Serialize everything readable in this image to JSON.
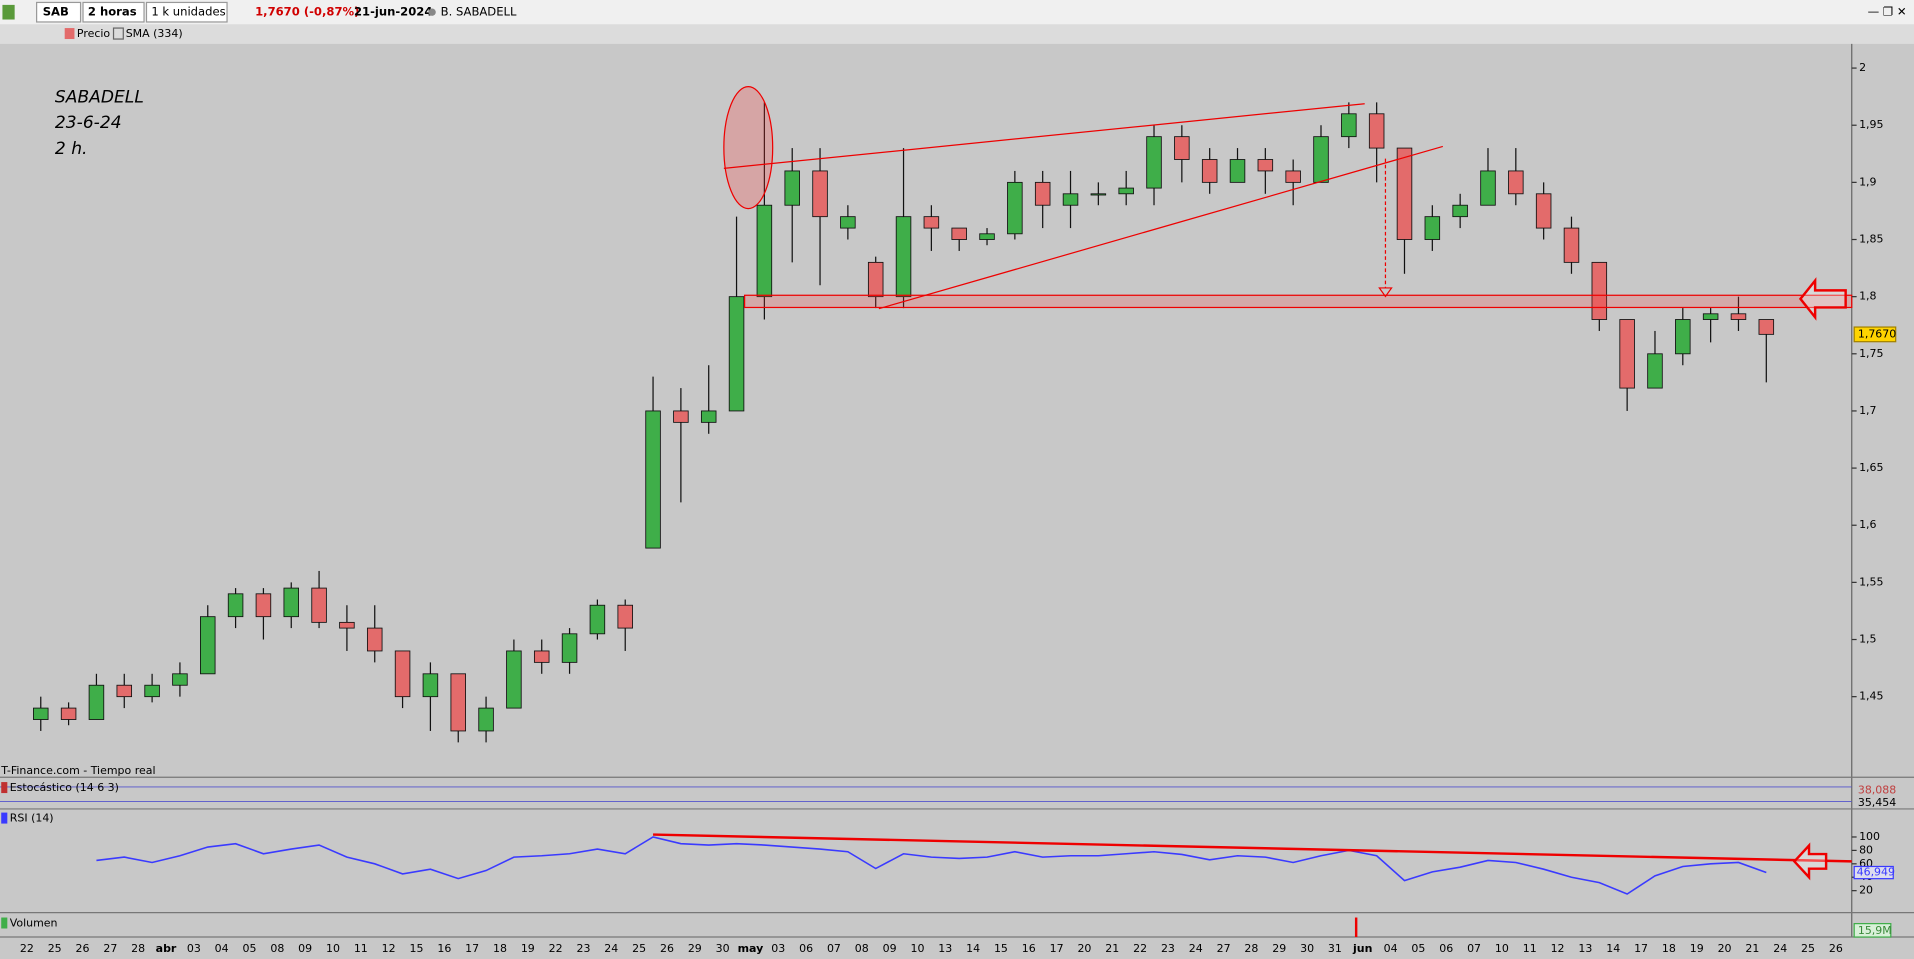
{
  "toolbar": {
    "symbol": "SAB",
    "interval": "2 horas",
    "units": "1 k unidades",
    "quote": "1,7670 (-0,87%)",
    "date": "21-jun-2024",
    "name": "B. SABADELL"
  },
  "legend_bar": {
    "price": "Precio",
    "sma": "SMA (334)"
  },
  "source": "T-Finance.com - Tiempo real",
  "stochastic": {
    "name": "Estocástico (14 6 3)",
    "values": [
      "38,088",
      "35,454"
    ]
  },
  "volume": {
    "name": "Volumen",
    "last": "15,9M"
  },
  "chart_data": [
    {
      "type": "candlestick",
      "annotations": [
        "SABADELL",
        "23-6-24",
        "2 h."
      ],
      "categories": [
        "22",
        "25",
        "26",
        "27",
        "28",
        "abr",
        "03",
        "04",
        "05",
        "08",
        "09",
        "10",
        "11",
        "12",
        "15",
        "16",
        "17",
        "18",
        "19",
        "22",
        "23",
        "24",
        "25",
        "26",
        "29",
        "30",
        "may",
        "03",
        "06",
        "07",
        "08",
        "09",
        "10",
        "13",
        "14",
        "15",
        "16",
        "17",
        "20",
        "21",
        "22",
        "23",
        "24",
        "27",
        "28",
        "29",
        "30",
        "31",
        "jun",
        "04",
        "05",
        "06",
        "07",
        "10",
        "11",
        "12",
        "13",
        "14",
        "17",
        "18",
        "19",
        "20",
        "21",
        "24",
        "25",
        "26"
      ],
      "open": [
        1.43,
        1.44,
        1.43,
        1.46,
        1.45,
        1.46,
        1.47,
        1.52,
        1.54,
        1.52,
        1.545,
        1.515,
        1.51,
        1.49,
        1.45,
        1.47,
        1.42,
        1.44,
        1.49,
        1.48,
        1.505,
        1.53,
        1.58,
        1.7,
        1.69,
        1.7,
        1.8,
        1.88,
        1.91,
        1.86,
        1.83,
        1.8,
        1.87,
        1.86,
        1.85,
        1.855,
        1.9,
        1.88,
        1.89,
        1.89,
        1.895,
        1.94,
        1.92,
        1.9,
        1.92,
        1.91,
        1.9,
        1.94,
        1.96,
        1.93,
        1.85,
        1.87,
        1.88,
        1.91,
        1.89,
        1.86,
        1.83,
        1.78,
        1.72,
        1.75,
        1.78,
        1.785,
        1.78,
        null,
        null,
        null
      ],
      "high": [
        1.45,
        1.445,
        1.47,
        1.47,
        1.47,
        1.48,
        1.53,
        1.545,
        1.545,
        1.55,
        1.56,
        1.53,
        1.53,
        1.49,
        1.48,
        1.47,
        1.45,
        1.5,
        1.5,
        1.51,
        1.535,
        1.535,
        1.73,
        1.72,
        1.74,
        1.87,
        1.97,
        1.93,
        1.93,
        1.88,
        1.835,
        1.93,
        1.88,
        1.86,
        1.86,
        1.91,
        1.91,
        1.91,
        1.9,
        1.91,
        1.95,
        1.95,
        1.93,
        1.93,
        1.93,
        1.92,
        1.95,
        1.97,
        1.97,
        1.93,
        1.88,
        1.89,
        1.93,
        1.93,
        1.9,
        1.87,
        1.83,
        1.78,
        1.77,
        1.79,
        1.79,
        1.8,
        1.78,
        null,
        null,
        null
      ],
      "low": [
        1.42,
        1.425,
        1.43,
        1.44,
        1.445,
        1.45,
        1.47,
        1.51,
        1.5,
        1.51,
        1.51,
        1.49,
        1.48,
        1.44,
        1.42,
        1.41,
        1.41,
        1.44,
        1.47,
        1.47,
        1.5,
        1.49,
        1.58,
        1.62,
        1.68,
        1.7,
        1.78,
        1.83,
        1.81,
        1.85,
        1.79,
        1.79,
        1.84,
        1.84,
        1.845,
        1.85,
        1.86,
        1.86,
        1.88,
        1.88,
        1.88,
        1.9,
        1.89,
        1.9,
        1.89,
        1.88,
        1.9,
        1.93,
        1.9,
        1.82,
        1.84,
        1.86,
        1.88,
        1.88,
        1.85,
        1.82,
        1.77,
        1.7,
        1.72,
        1.74,
        1.76,
        1.77,
        1.725,
        null,
        null,
        null
      ],
      "close": [
        1.44,
        1.43,
        1.46,
        1.45,
        1.46,
        1.47,
        1.52,
        1.54,
        1.52,
        1.545,
        1.515,
        1.51,
        1.49,
        1.45,
        1.47,
        1.42,
        1.44,
        1.49,
        1.48,
        1.505,
        1.53,
        1.51,
        1.7,
        1.69,
        1.7,
        1.8,
        1.88,
        1.91,
        1.87,
        1.87,
        1.8,
        1.87,
        1.86,
        1.85,
        1.855,
        1.9,
        1.88,
        1.89,
        1.89,
        1.895,
        1.94,
        1.92,
        1.9,
        1.92,
        1.91,
        1.9,
        1.94,
        1.96,
        1.93,
        1.85,
        1.87,
        1.88,
        1.91,
        1.89,
        1.86,
        1.83,
        1.78,
        1.72,
        1.75,
        1.78,
        1.785,
        1.78,
        1.767,
        null,
        null,
        null
      ],
      "up_color": "#3fae49",
      "down_color": "#e36b6b",
      "ylim": [
        1.387,
        2.019
      ],
      "yticks": [
        {
          "value": 1.45,
          "label": "1,45"
        },
        {
          "value": 1.5,
          "label": "1,5"
        },
        {
          "value": 1.55,
          "label": "1,55"
        },
        {
          "value": 1.6,
          "label": "1,6"
        },
        {
          "value": 1.65,
          "label": "1,65"
        },
        {
          "value": 1.7,
          "label": "1,7"
        },
        {
          "value": 1.75,
          "label": "1,75"
        },
        {
          "value": 1.8,
          "label": "1,8"
        },
        {
          "value": 1.85,
          "label": "1,85"
        },
        {
          "value": 1.9,
          "label": "1,9"
        },
        {
          "value": 1.95,
          "label": "1,95"
        },
        2
      ],
      "last_price": {
        "value": 1.767,
        "label": "1,7670"
      }
    },
    {
      "type": "line",
      "series": [
        {
          "name": "RSI (14)",
          "color": "#3a3aff",
          "values": [
            null,
            null,
            65,
            70,
            62,
            72,
            85,
            90,
            75,
            82,
            88,
            70,
            60,
            45,
            52,
            38,
            50,
            70,
            72,
            75,
            82,
            75,
            100,
            90,
            88,
            90,
            88,
            85,
            82,
            78,
            53,
            75,
            70,
            68,
            70,
            78,
            70,
            72,
            72,
            75,
            78,
            74,
            66,
            72,
            70,
            62,
            72,
            80,
            72,
            35,
            48,
            55,
            65,
            62,
            52,
            40,
            32,
            15,
            42,
            56,
            60,
            62,
            47,
            null,
            null,
            null
          ]
        }
      ],
      "ylim": [
        -16.4,
        140
      ],
      "yticks": [
        20,
        40,
        60,
        80,
        100
      ],
      "current_value": {
        "value": 46.949,
        "label": "46,949"
      }
    }
  ]
}
